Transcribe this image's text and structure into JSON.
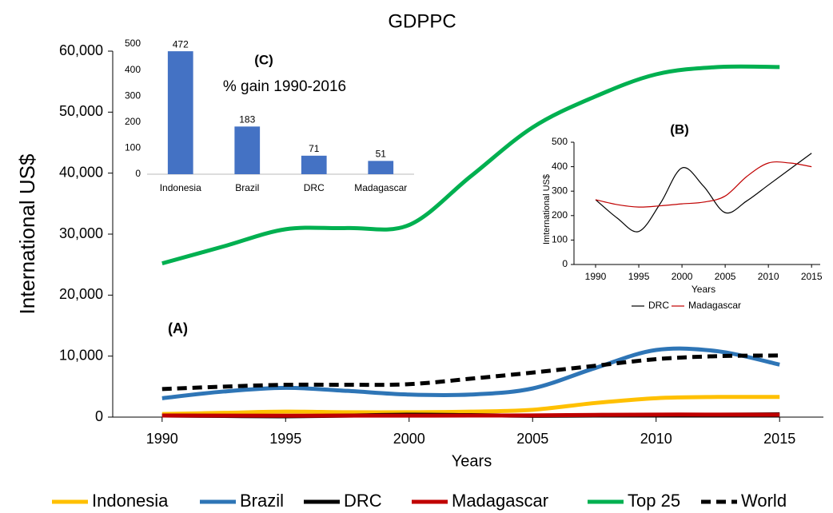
{
  "chart_data": [
    {
      "type": "line",
      "title": "GDPPC",
      "annotation": "(A)",
      "xlabel": "Years",
      "ylabel": "International US$",
      "x": [
        1990,
        1992.5,
        1995,
        1997.5,
        2000,
        2002.5,
        2005,
        2007.5,
        2010,
        2012.5,
        2015
      ],
      "series": [
        {
          "name": "Indonesia",
          "color": "#ffc000",
          "values": [
            500,
            700,
            900,
            800,
            800,
            900,
            1200,
            2300,
            3100,
            3300,
            3300
          ]
        },
        {
          "name": "Brazil",
          "color": "#2e75b6",
          "values": [
            3100,
            4200,
            4800,
            4300,
            3700,
            3700,
            4700,
            8000,
            11000,
            10800,
            8600
          ]
        },
        {
          "name": "DRC",
          "color": "#000000",
          "values": [
            265,
            190,
            135,
            250,
            395,
            320,
            212,
            260,
            325,
            390,
            455
          ]
        },
        {
          "name": "Madagascar",
          "color": "#c00000",
          "values": [
            265,
            245,
            235,
            240,
            248,
            255,
            280,
            360,
            415,
            415,
            400
          ]
        },
        {
          "name": "Top 25",
          "color": "#00b050",
          "values": [
            25200,
            28000,
            30800,
            31000,
            31500,
            39500,
            47500,
            52500,
            56200,
            57400,
            57400
          ]
        },
        {
          "name": "World",
          "color": "#000000",
          "dash": true,
          "values": [
            4600,
            5000,
            5300,
            5300,
            5400,
            6300,
            7300,
            8400,
            9500,
            10000,
            10100
          ]
        }
      ],
      "xlim": [
        1988,
        2017
      ],
      "xticks": [
        1990,
        1995,
        2000,
        2005,
        2010,
        2015
      ],
      "ylim": [
        0,
        60000
      ],
      "yticks": [
        0,
        {
          "value": 10000,
          "label": "10,000"
        },
        {
          "value": 20000,
          "label": "20,000"
        },
        {
          "value": 30000,
          "label": "30,000"
        },
        {
          "value": 40000,
          "label": "40,000"
        },
        {
          "value": 50000,
          "label": "50,000"
        },
        {
          "value": 60000,
          "label": "60,000"
        }
      ],
      "grid": false,
      "legend": "bottom"
    },
    {
      "type": "line",
      "annotation": "(B)",
      "xlabel": "Years",
      "ylabel": "Imternational US$",
      "x": [
        1990,
        1992.5,
        1995,
        1997.5,
        2000,
        2002.5,
        2005,
        2007.5,
        2010,
        2012.5,
        2015
      ],
      "series": [
        {
          "name": "DRC",
          "color": "#000000",
          "values": [
            265,
            190,
            135,
            250,
            395,
            320,
            212,
            260,
            325,
            390,
            455
          ]
        },
        {
          "name": "Madagascar",
          "color": "#c00000",
          "values": [
            265,
            245,
            235,
            240,
            248,
            255,
            280,
            360,
            415,
            415,
            400
          ]
        }
      ],
      "xlim": [
        1987.5,
        2016
      ],
      "xticks": [
        1990,
        1995,
        2000,
        2005,
        2010,
        2015
      ],
      "ylim": [
        0,
        500
      ],
      "yticks": [
        0,
        100,
        200,
        300,
        400,
        500
      ],
      "grid": false,
      "legend": "bottom"
    },
    {
      "type": "bar",
      "title": "% gain 1990-2016",
      "annotation": "(C)",
      "categories": [
        "Indonesia",
        "Brazil",
        "DRC",
        "Madagascar"
      ],
      "values": [
        472,
        183,
        71,
        51
      ],
      "color": "#4472c4",
      "ylim": [
        0,
        500
      ],
      "yticks": [
        0,
        100,
        200,
        300,
        400,
        500
      ],
      "grid": false
    }
  ]
}
